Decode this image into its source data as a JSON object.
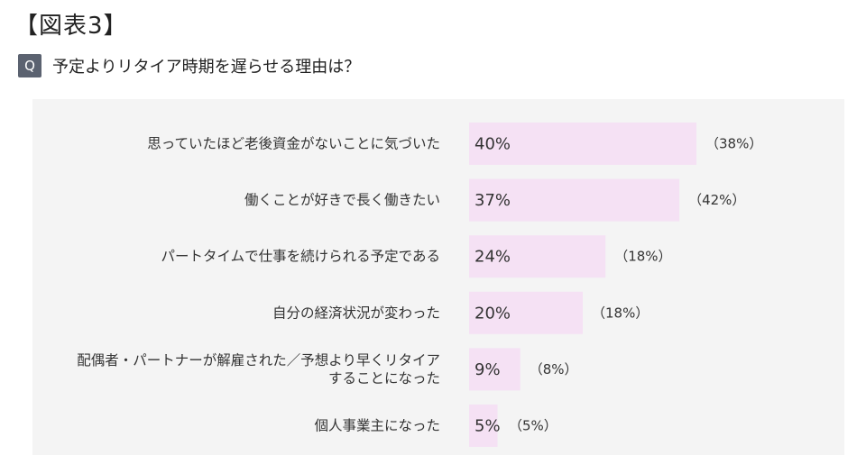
{
  "figure_label": "【図表3】",
  "question": {
    "badge": "Q",
    "text": "予定よりリタイア時期を遅らせる理由は？"
  },
  "chart_data": {
    "type": "bar",
    "orientation": "horizontal",
    "categories": [
      [
        "思っていたほど老後資金がないことに気づいた"
      ],
      [
        "働くことが好きで長く働きたい"
      ],
      [
        "パートタイムで仕事を続けられる予定である"
      ],
      [
        "自分の経済状況が変わった"
      ],
      [
        "配偶者・パートナーが解雇された／予想より早くリタイア",
        "することになった"
      ],
      [
        "個人事業主になった"
      ]
    ],
    "series": [
      {
        "values": [
          40,
          37,
          24,
          20,
          9,
          5
        ]
      },
      {
        "values": [
          38,
          42,
          18,
          18,
          8,
          5
        ]
      }
    ],
    "value_labels": [
      "40%",
      "37%",
      "24%",
      "20%",
      "9%",
      "5%"
    ],
    "secondary_labels": [
      "（38%）",
      "（42%）",
      "（18%）",
      "（18%）",
      "（8%）",
      "（5%）"
    ],
    "bar_color": "#f5e1f4",
    "xlim": [
      0,
      100
    ],
    "grid": false,
    "legend": "none"
  }
}
